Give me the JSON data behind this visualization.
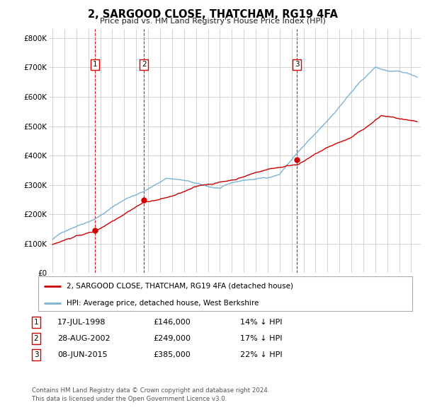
{
  "title": "2, SARGOOD CLOSE, THATCHAM, RG19 4FA",
  "subtitle": "Price paid vs. HM Land Registry's House Price Index (HPI)",
  "ylabel_ticks": [
    "£0",
    "£100K",
    "£200K",
    "£300K",
    "£400K",
    "£500K",
    "£600K",
    "£700K",
    "£800K"
  ],
  "ytick_vals": [
    0,
    100000,
    200000,
    300000,
    400000,
    500000,
    600000,
    700000,
    800000
  ],
  "ylim": [
    0,
    830000
  ],
  "xlim_start": 1994.7,
  "xlim_end": 2025.8,
  "sale_color": "#cc0000",
  "hpi_color": "#7ab3d4",
  "vline_color": "#cc0000",
  "grid_color": "#cccccc",
  "background_color": "#ffffff",
  "sales": [
    {
      "year": 1998.54,
      "price": 146000,
      "label": "1"
    },
    {
      "year": 2002.66,
      "price": 249000,
      "label": "2"
    },
    {
      "year": 2015.44,
      "price": 385000,
      "label": "3"
    }
  ],
  "legend_sale_label": "2, SARGOOD CLOSE, THATCHAM, RG19 4FA (detached house)",
  "legend_hpi_label": "HPI: Average price, detached house, West Berkshire",
  "table_rows": [
    {
      "num": "1",
      "date": "17-JUL-1998",
      "price": "£146,000",
      "pct": "14% ↓ HPI"
    },
    {
      "num": "2",
      "date": "28-AUG-2002",
      "price": "£249,000",
      "pct": "17% ↓ HPI"
    },
    {
      "num": "3",
      "date": "08-JUN-2015",
      "price": "£385,000",
      "pct": "22% ↓ HPI"
    }
  ],
  "footnote": "Contains HM Land Registry data © Crown copyright and database right 2024.\nThis data is licensed under the Open Government Licence v3.0."
}
